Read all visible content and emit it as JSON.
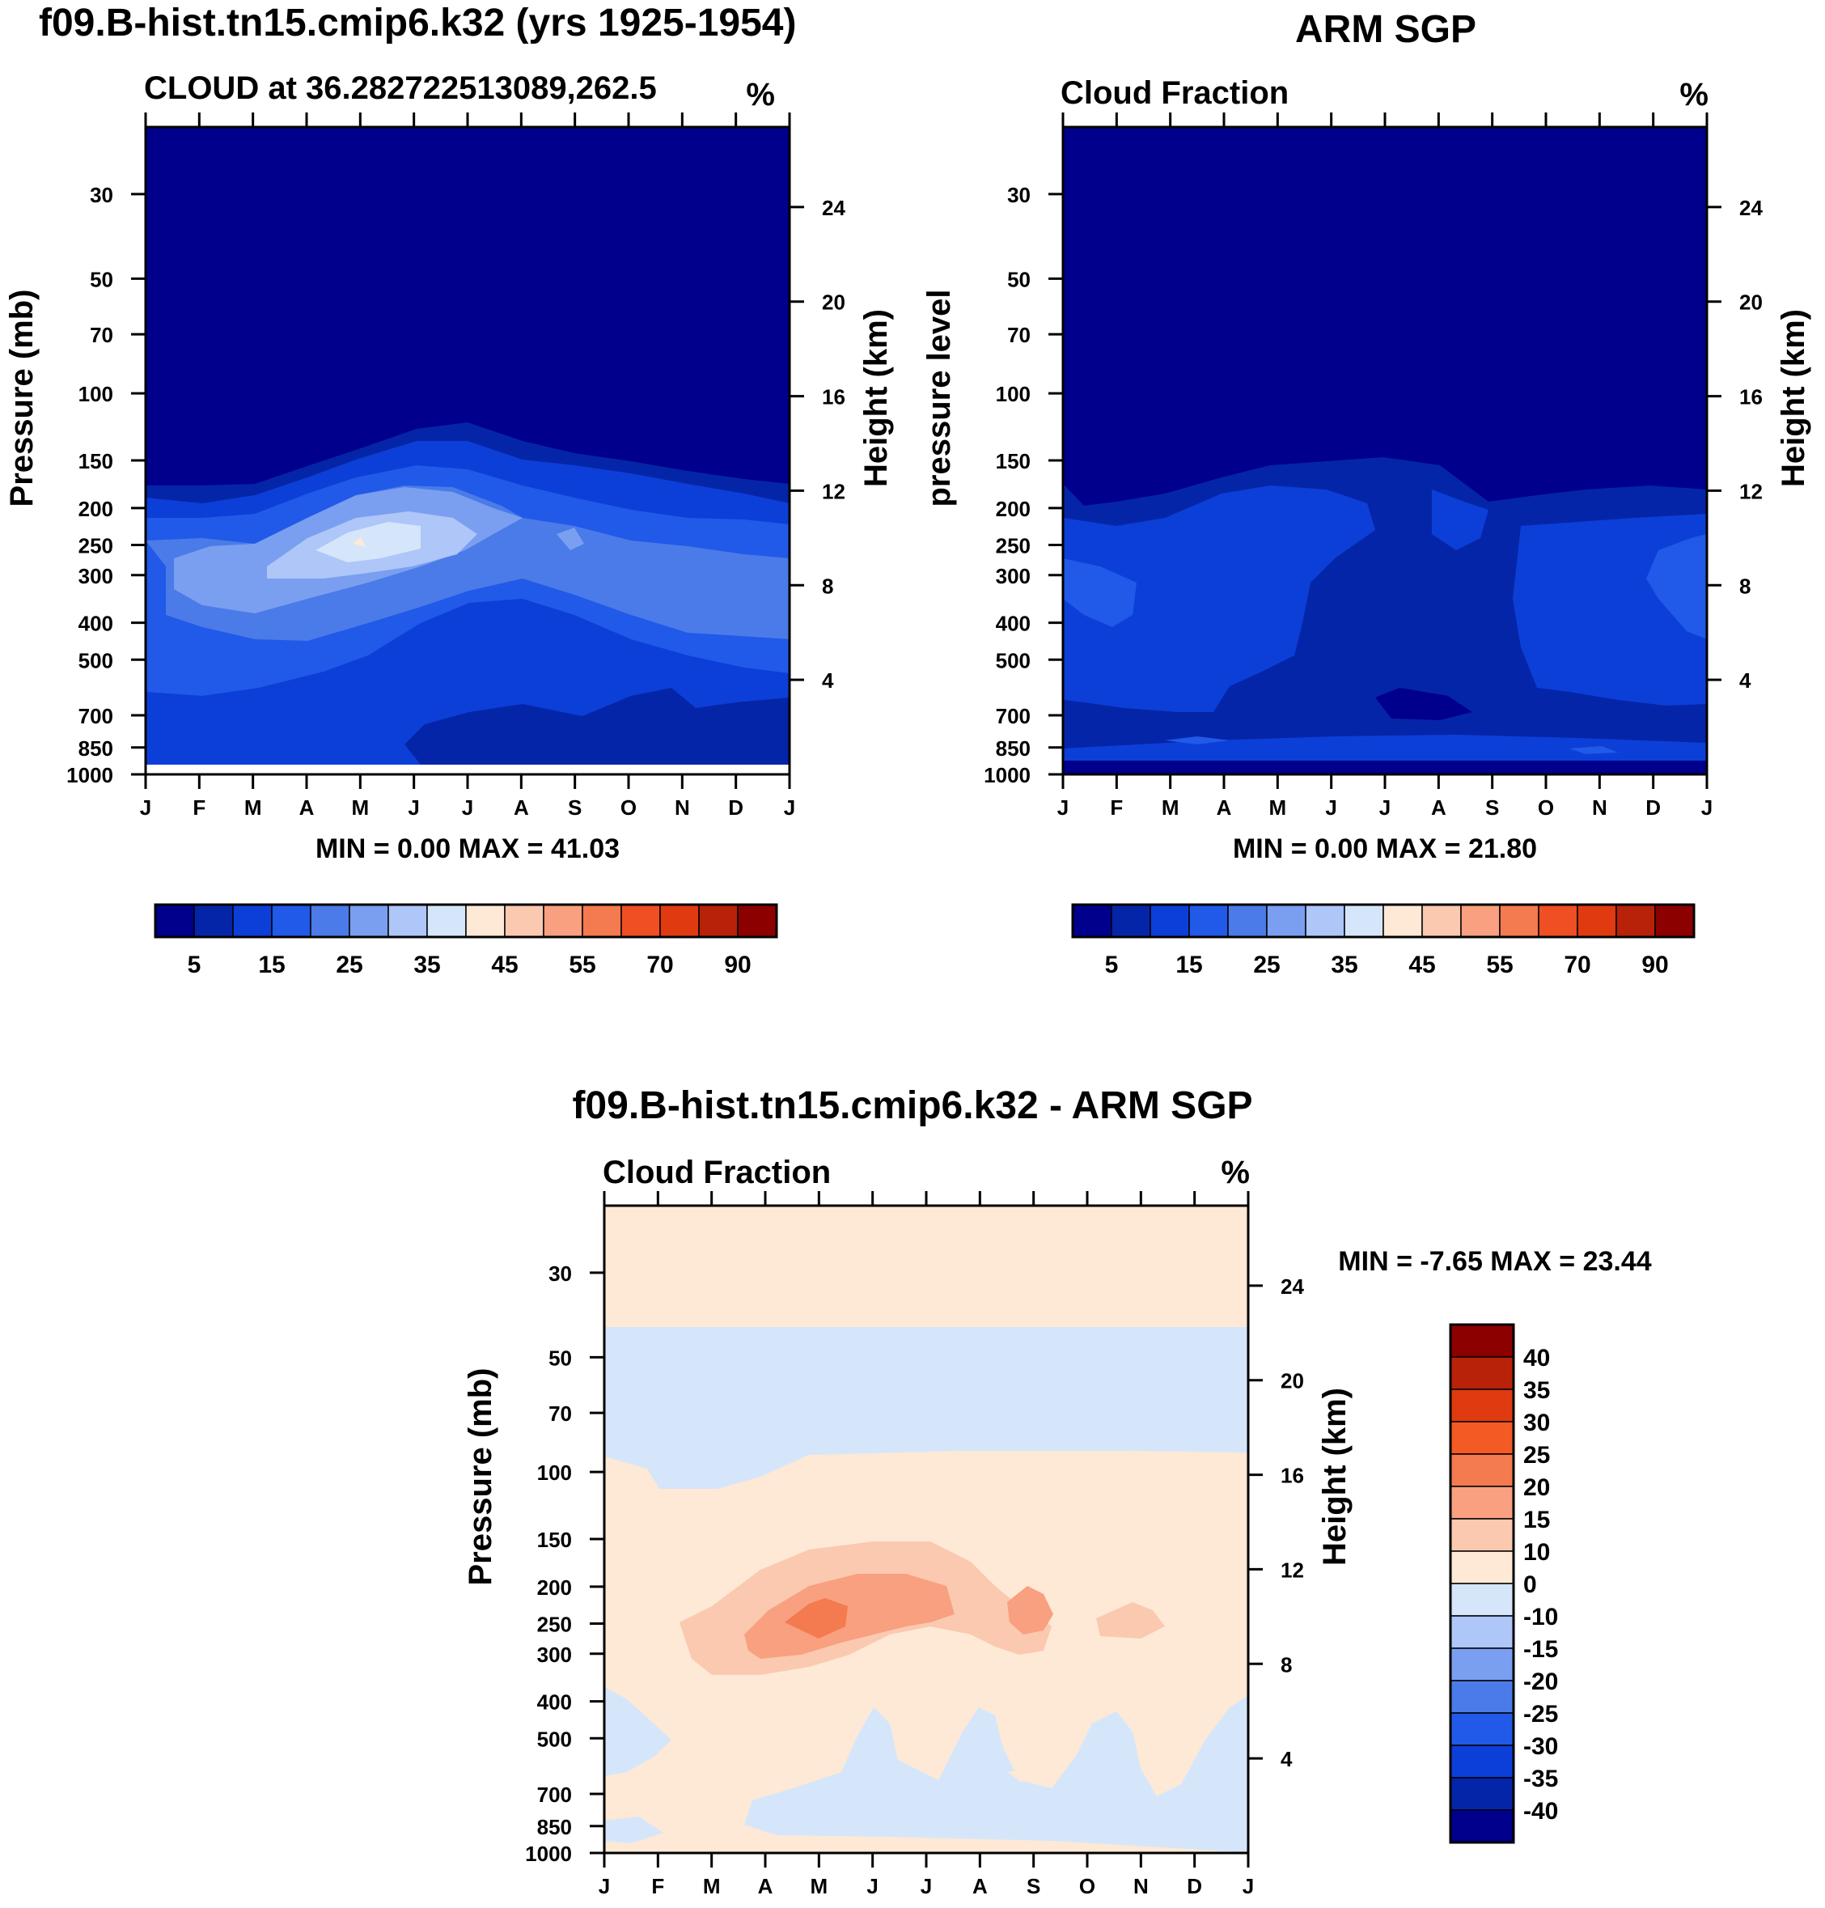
{
  "panels": [
    {
      "id": "model",
      "title": "f09.B-hist.tn15.cmip6.k32 (yrs 1925-1954)",
      "subtitle_left": "CLOUD at 36.282722513089,262.5",
      "subtitle_right": "%",
      "ylabel_left": "Pressure (mb)",
      "ylabel_right": "Height (km)",
      "stats": "MIN =    0.00 MAX =  41.03"
    },
    {
      "id": "obs",
      "title": "ARM SGP",
      "subtitle_left": "Cloud Fraction",
      "subtitle_right": "%",
      "ylabel_left": "pressure level",
      "ylabel_right": "Height (km)",
      "stats": "MIN =    0.00 MAX =  21.80"
    },
    {
      "id": "diff",
      "title": "f09.B-hist.tn15.cmip6.k32 - ARM SGP",
      "subtitle_left": "Cloud Fraction",
      "subtitle_right": "%",
      "ylabel_left": "Pressure (mb)",
      "ylabel_right": "Height (km)",
      "stats": "MIN =  -7.65 MAX =  23.44"
    }
  ],
  "colorbar_abs": {
    "colors": [
      "#00008c",
      "#0525a8",
      "#0c3fd8",
      "#2159e8",
      "#4a7be8",
      "#7a9ff0",
      "#aec6f8",
      "#d5e6fb",
      "#fde9d6",
      "#fbc9b0",
      "#f8a080",
      "#f47a4f",
      "#ef4f22",
      "#e03a10",
      "#b82208",
      "#8c0000"
    ],
    "labels": [
      "5",
      "15",
      "25",
      "35",
      "45",
      "55",
      "70",
      "90"
    ]
  },
  "colorbar_diff": {
    "colors": [
      "#8c0000",
      "#b82208",
      "#e03a10",
      "#f45a23",
      "#f47a4f",
      "#f8a080",
      "#fbc9b0",
      "#fde9d6",
      "#d5e6fb",
      "#aec6f8",
      "#7a9ff0",
      "#4a7be8",
      "#2159e8",
      "#0c3fd8",
      "#0525a8",
      "#00008c"
    ],
    "labels": [
      "40",
      "35",
      "30",
      "25",
      "20",
      "15",
      "10",
      "0",
      "-10",
      "-15",
      "-20",
      "-25",
      "-30",
      "-35",
      "-40"
    ]
  },
  "chart_data": [
    {
      "type": "heatmap",
      "title": "f09.B-hist.tn15.cmip6.k32 (yrs 1925-1954)",
      "subtitle": "CLOUD at 36.282722513089,262.5",
      "units": "%",
      "x_tick_labels": [
        "J",
        "F",
        "M",
        "A",
        "M",
        "J",
        "J",
        "A",
        "S",
        "O",
        "N",
        "D",
        "J"
      ],
      "y_pressure_ticks": [
        30,
        50,
        70,
        100,
        150,
        200,
        250,
        300,
        400,
        500,
        700,
        850,
        1000
      ],
      "y_height_ticks": [
        24,
        20,
        16,
        12,
        8,
        4
      ],
      "ylabel": "Pressure (mb)",
      "ylabel_right": "Height (km)",
      "min": 0.0,
      "max": 41.03,
      "contour_levels": [
        5,
        10,
        15,
        20,
        25,
        30,
        35,
        40,
        45,
        50,
        55,
        60,
        70,
        80,
        90
      ]
    },
    {
      "type": "heatmap",
      "title": "ARM SGP",
      "subtitle": "Cloud Fraction",
      "units": "%",
      "x_tick_labels": [
        "J",
        "F",
        "M",
        "A",
        "M",
        "J",
        "J",
        "A",
        "S",
        "O",
        "N",
        "D",
        "J"
      ],
      "y_pressure_ticks": [
        30,
        50,
        70,
        100,
        150,
        200,
        250,
        300,
        400,
        500,
        700,
        850,
        1000
      ],
      "y_height_ticks": [
        24,
        20,
        16,
        12,
        8,
        4
      ],
      "ylabel": "pressure level",
      "ylabel_right": "Height (km)",
      "min": 0.0,
      "max": 21.8,
      "contour_levels": [
        5,
        10,
        15,
        20,
        25,
        30,
        35,
        40,
        45,
        50,
        55,
        60,
        70,
        80,
        90
      ]
    },
    {
      "type": "heatmap",
      "title": "f09.B-hist.tn15.cmip6.k32 - ARM SGP",
      "subtitle": "Cloud Fraction",
      "units": "%",
      "x_tick_labels": [
        "J",
        "F",
        "M",
        "A",
        "M",
        "J",
        "J",
        "A",
        "S",
        "O",
        "N",
        "D",
        "J"
      ],
      "y_pressure_ticks": [
        30,
        50,
        70,
        100,
        150,
        200,
        250,
        300,
        400,
        500,
        700,
        850,
        1000
      ],
      "y_height_ticks": [
        24,
        20,
        16,
        12,
        8,
        4
      ],
      "ylabel": "Pressure (mb)",
      "ylabel_right": "Height (km)",
      "min": -7.65,
      "max": 23.44,
      "contour_levels": [
        -40,
        -35,
        -30,
        -25,
        -20,
        -15,
        -10,
        0,
        10,
        15,
        20,
        25,
        30,
        35,
        40
      ]
    }
  ]
}
